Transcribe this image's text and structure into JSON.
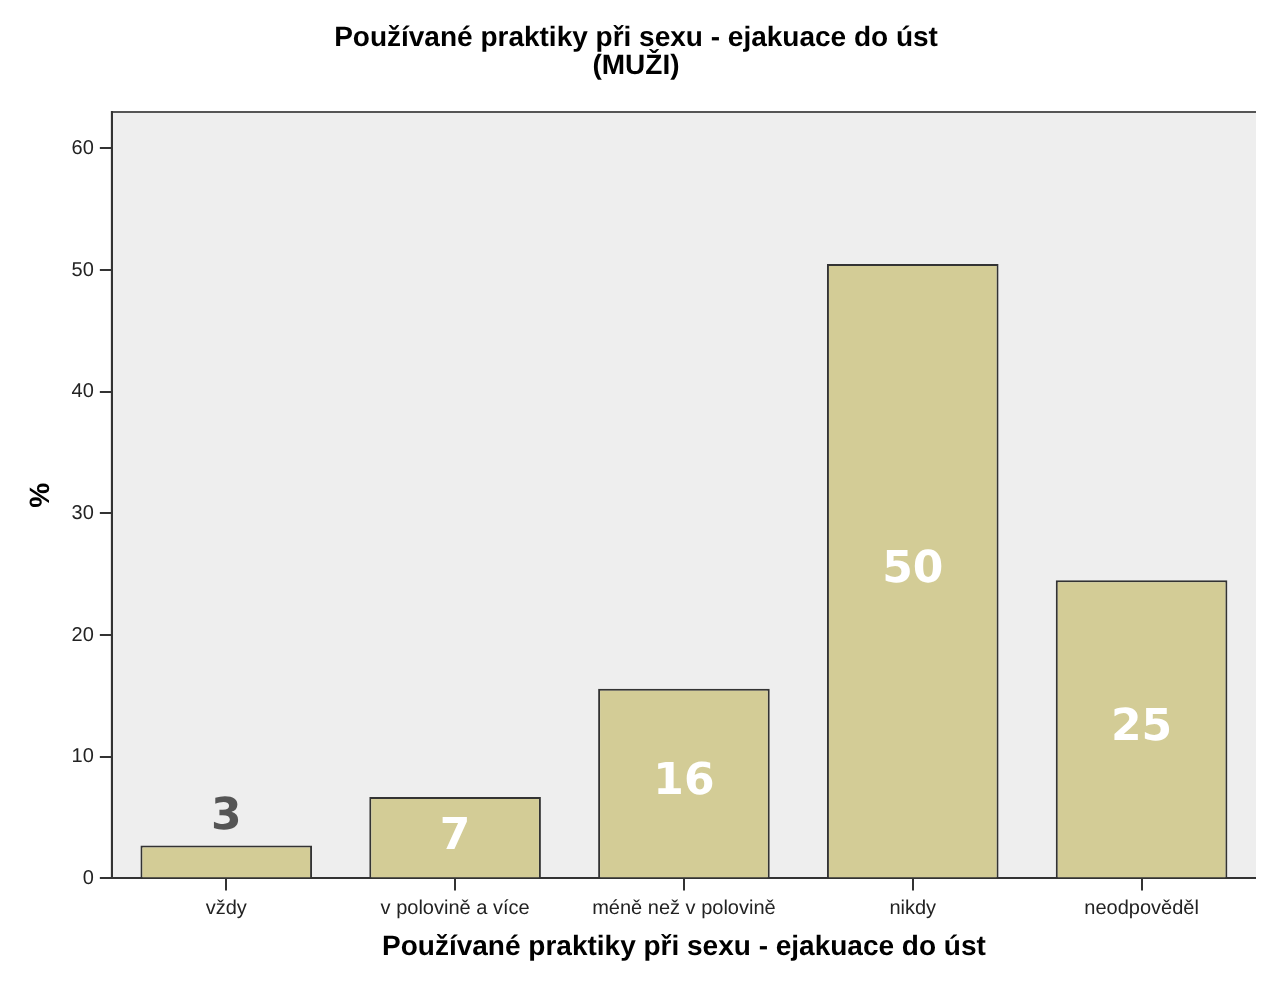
{
  "chart_data": {
    "type": "bar",
    "title": [
      "Používané praktiky při sexu - ejakuace do úst",
      "(MUŽI)"
    ],
    "xlabel": "Používané praktiky při sexu - ejakuace do úst",
    "ylabel": "%",
    "categories": [
      "vždy",
      "v polovině a více",
      "méně než v polovině",
      "nikdy",
      "neodpověděl"
    ],
    "values": [
      2.7,
      6.7,
      15.6,
      50.5,
      24.5
    ],
    "value_labels": [
      "3",
      "7",
      "16",
      "50",
      "25"
    ],
    "color": "#d3cc96",
    "ylim": [
      0,
      63
    ],
    "yticks": [
      0,
      10,
      20,
      30,
      40,
      50,
      60
    ],
    "grid": false,
    "legend": false
  }
}
